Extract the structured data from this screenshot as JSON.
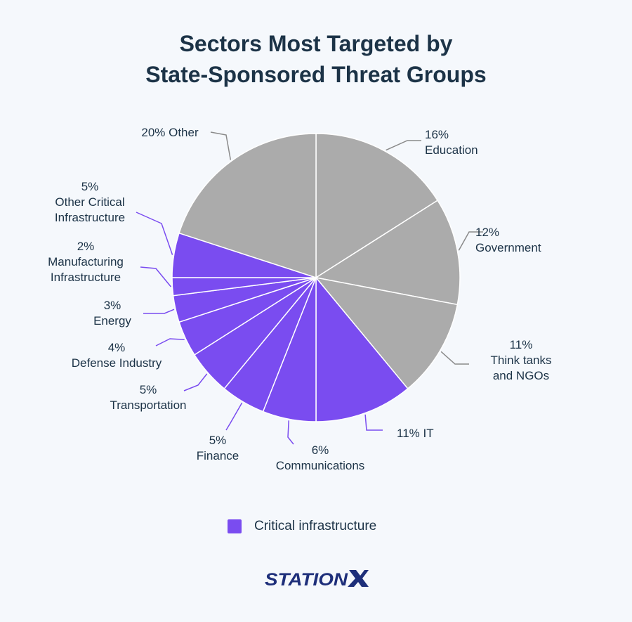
{
  "title_lines": [
    "Sectors Most Targeted by",
    "State-Sponsored Threat Groups"
  ],
  "legend": {
    "label": "Critical infrastructure"
  },
  "logo": {
    "text": "STATIONX"
  },
  "colors": {
    "gray": "#ababab",
    "critical": "#7a4cf0",
    "gray_line": "#8a8a8a",
    "critical_line": "#7a4cf0"
  },
  "chart_data": {
    "type": "pie",
    "title": "Sectors Most Targeted by State-Sponsored Threat Groups",
    "start": "top, clockwise",
    "slices": [
      {
        "name": "Education",
        "value": 16,
        "group": "other",
        "label": [
          "16%",
          "Education"
        ]
      },
      {
        "name": "Government",
        "value": 12,
        "group": "other",
        "label": [
          "12%",
          "Government"
        ]
      },
      {
        "name": "Think tanks and NGOs",
        "value": 11,
        "group": "other",
        "label": [
          "11%",
          "Think tanks",
          "and NGOs"
        ]
      },
      {
        "name": "IT",
        "value": 11,
        "group": "critical",
        "label": [
          "11% IT"
        ]
      },
      {
        "name": "Communications",
        "value": 6,
        "group": "critical",
        "label": [
          "6%",
          "Communications"
        ]
      },
      {
        "name": "Finance",
        "value": 5,
        "group": "critical",
        "label": [
          "5%",
          "Finance"
        ]
      },
      {
        "name": "Transportation",
        "value": 5,
        "group": "critical",
        "label": [
          "5%",
          "Transportation"
        ]
      },
      {
        "name": "Defense Industry",
        "value": 4,
        "group": "critical",
        "label": [
          "4%",
          "Defense Industry"
        ]
      },
      {
        "name": "Energy",
        "value": 3,
        "group": "critical",
        "label": [
          "3%",
          "Energy"
        ]
      },
      {
        "name": "Manufacturing Infrastructure",
        "value": 2,
        "group": "critical",
        "label": [
          "2%",
          "Manufacturing",
          "Infrastructure"
        ]
      },
      {
        "name": "Other Critical Infrastructure",
        "value": 5,
        "group": "critical",
        "label": [
          "5%",
          "Other Critical",
          "Infrastructure"
        ]
      },
      {
        "name": "Other",
        "value": 20,
        "group": "other",
        "label": [
          "20% Other"
        ]
      }
    ],
    "legend": [
      {
        "name": "Critical infrastructure",
        "group": "critical"
      }
    ],
    "legend_position": "bottom-center"
  }
}
